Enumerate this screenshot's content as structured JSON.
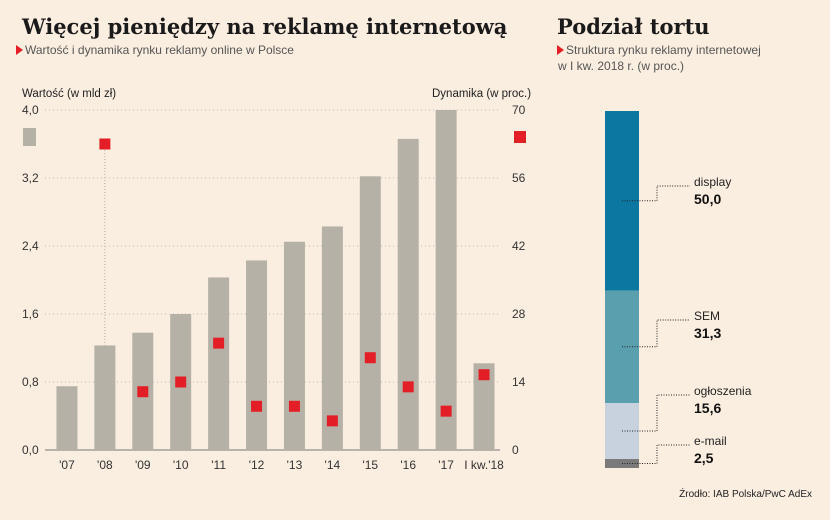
{
  "left_chart": {
    "title": "Więcej pieniędzy na reklamę internetową",
    "subtitle": "Wartość i dynamika rynku reklamy online w Polsce",
    "ylabel_left": "Wartość (w mld zł)",
    "ylabel_right": "Dynamika (w proc.)"
  },
  "right_chart": {
    "title": "Podział tortu",
    "subtitle_line1": "Struktura rynku reklamy internetowej",
    "subtitle_line2": "w I kw. 2018 r. (w proc.)"
  },
  "source": "Źrodło: IAB Polska/PwC AdEx",
  "chart_data": [
    {
      "type": "bar",
      "categories": [
        "'07",
        "'08",
        "'09",
        "'10",
        "'11",
        "'12",
        "'13",
        "'14",
        "'15",
        "'16",
        "'17",
        "I kw.'18"
      ],
      "series": [
        {
          "values": [
            0.75,
            1.23,
            1.38,
            1.6,
            2.03,
            2.23,
            2.45,
            2.63,
            3.22,
            3.66,
            4.0,
            1.02
          ],
          "axis": "left",
          "color": "#b5b1a6"
        },
        {
          "type": "scatter",
          "values": [
            null,
            63,
            12,
            14,
            22,
            9,
            9,
            6,
            19,
            13,
            8,
            15.5
          ],
          "axis": "right",
          "color": "#e41e26"
        }
      ],
      "y_left": {
        "ticks": [
          "0,0",
          "0,8",
          "1,6",
          "2,4",
          "3,2",
          "4,0"
        ],
        "range": [
          0,
          4.0
        ]
      },
      "y_right": {
        "ticks": [
          "0",
          "14",
          "28",
          "42",
          "56",
          "70"
        ],
        "range": [
          0,
          70
        ]
      },
      "legend": {
        "bar_color": "#b5b1a6",
        "marker_color": "#e41e26",
        "placement": "top"
      },
      "grid": true
    },
    {
      "type": "stacked-bar",
      "segments": [
        {
          "label": "display",
          "value": "50,0",
          "num": 50.0,
          "color": "#0c78a1"
        },
        {
          "label": "SEM",
          "value": "31,3",
          "num": 31.3,
          "color": "#5a9fae"
        },
        {
          "label": "ogłoszenia",
          "value": "15,6",
          "num": 15.6,
          "color": "#c7d2de"
        },
        {
          "label": "e-mail",
          "value": "2,5",
          "num": 2.5,
          "color": "#7a7a7a"
        }
      ]
    }
  ]
}
